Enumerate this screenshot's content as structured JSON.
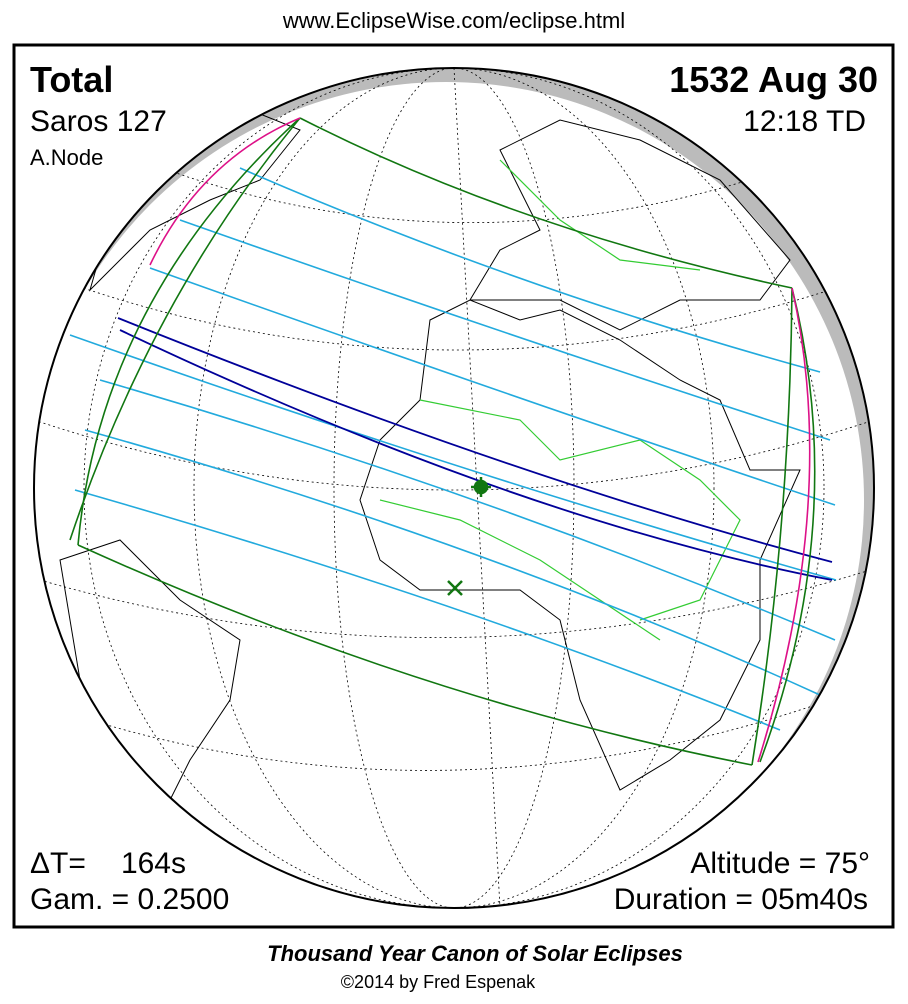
{
  "header": {
    "url": "www.EclipseWise.com/eclipse.html"
  },
  "eclipse": {
    "type": "Total",
    "saros": "Saros 127",
    "node": "A.Node",
    "date": "1532 Aug 30",
    "time": "12:18 TD",
    "delta_t_label": "ΔT=",
    "delta_t_value": "164s",
    "gamma": "Gam. = 0.2500",
    "altitude": "Altitude = 75°",
    "duration": "Duration = 05m40s"
  },
  "footer": {
    "title": "Thousand Year Canon of Solar Eclipses",
    "credit": "©2014 by Fred Espenak"
  }
}
